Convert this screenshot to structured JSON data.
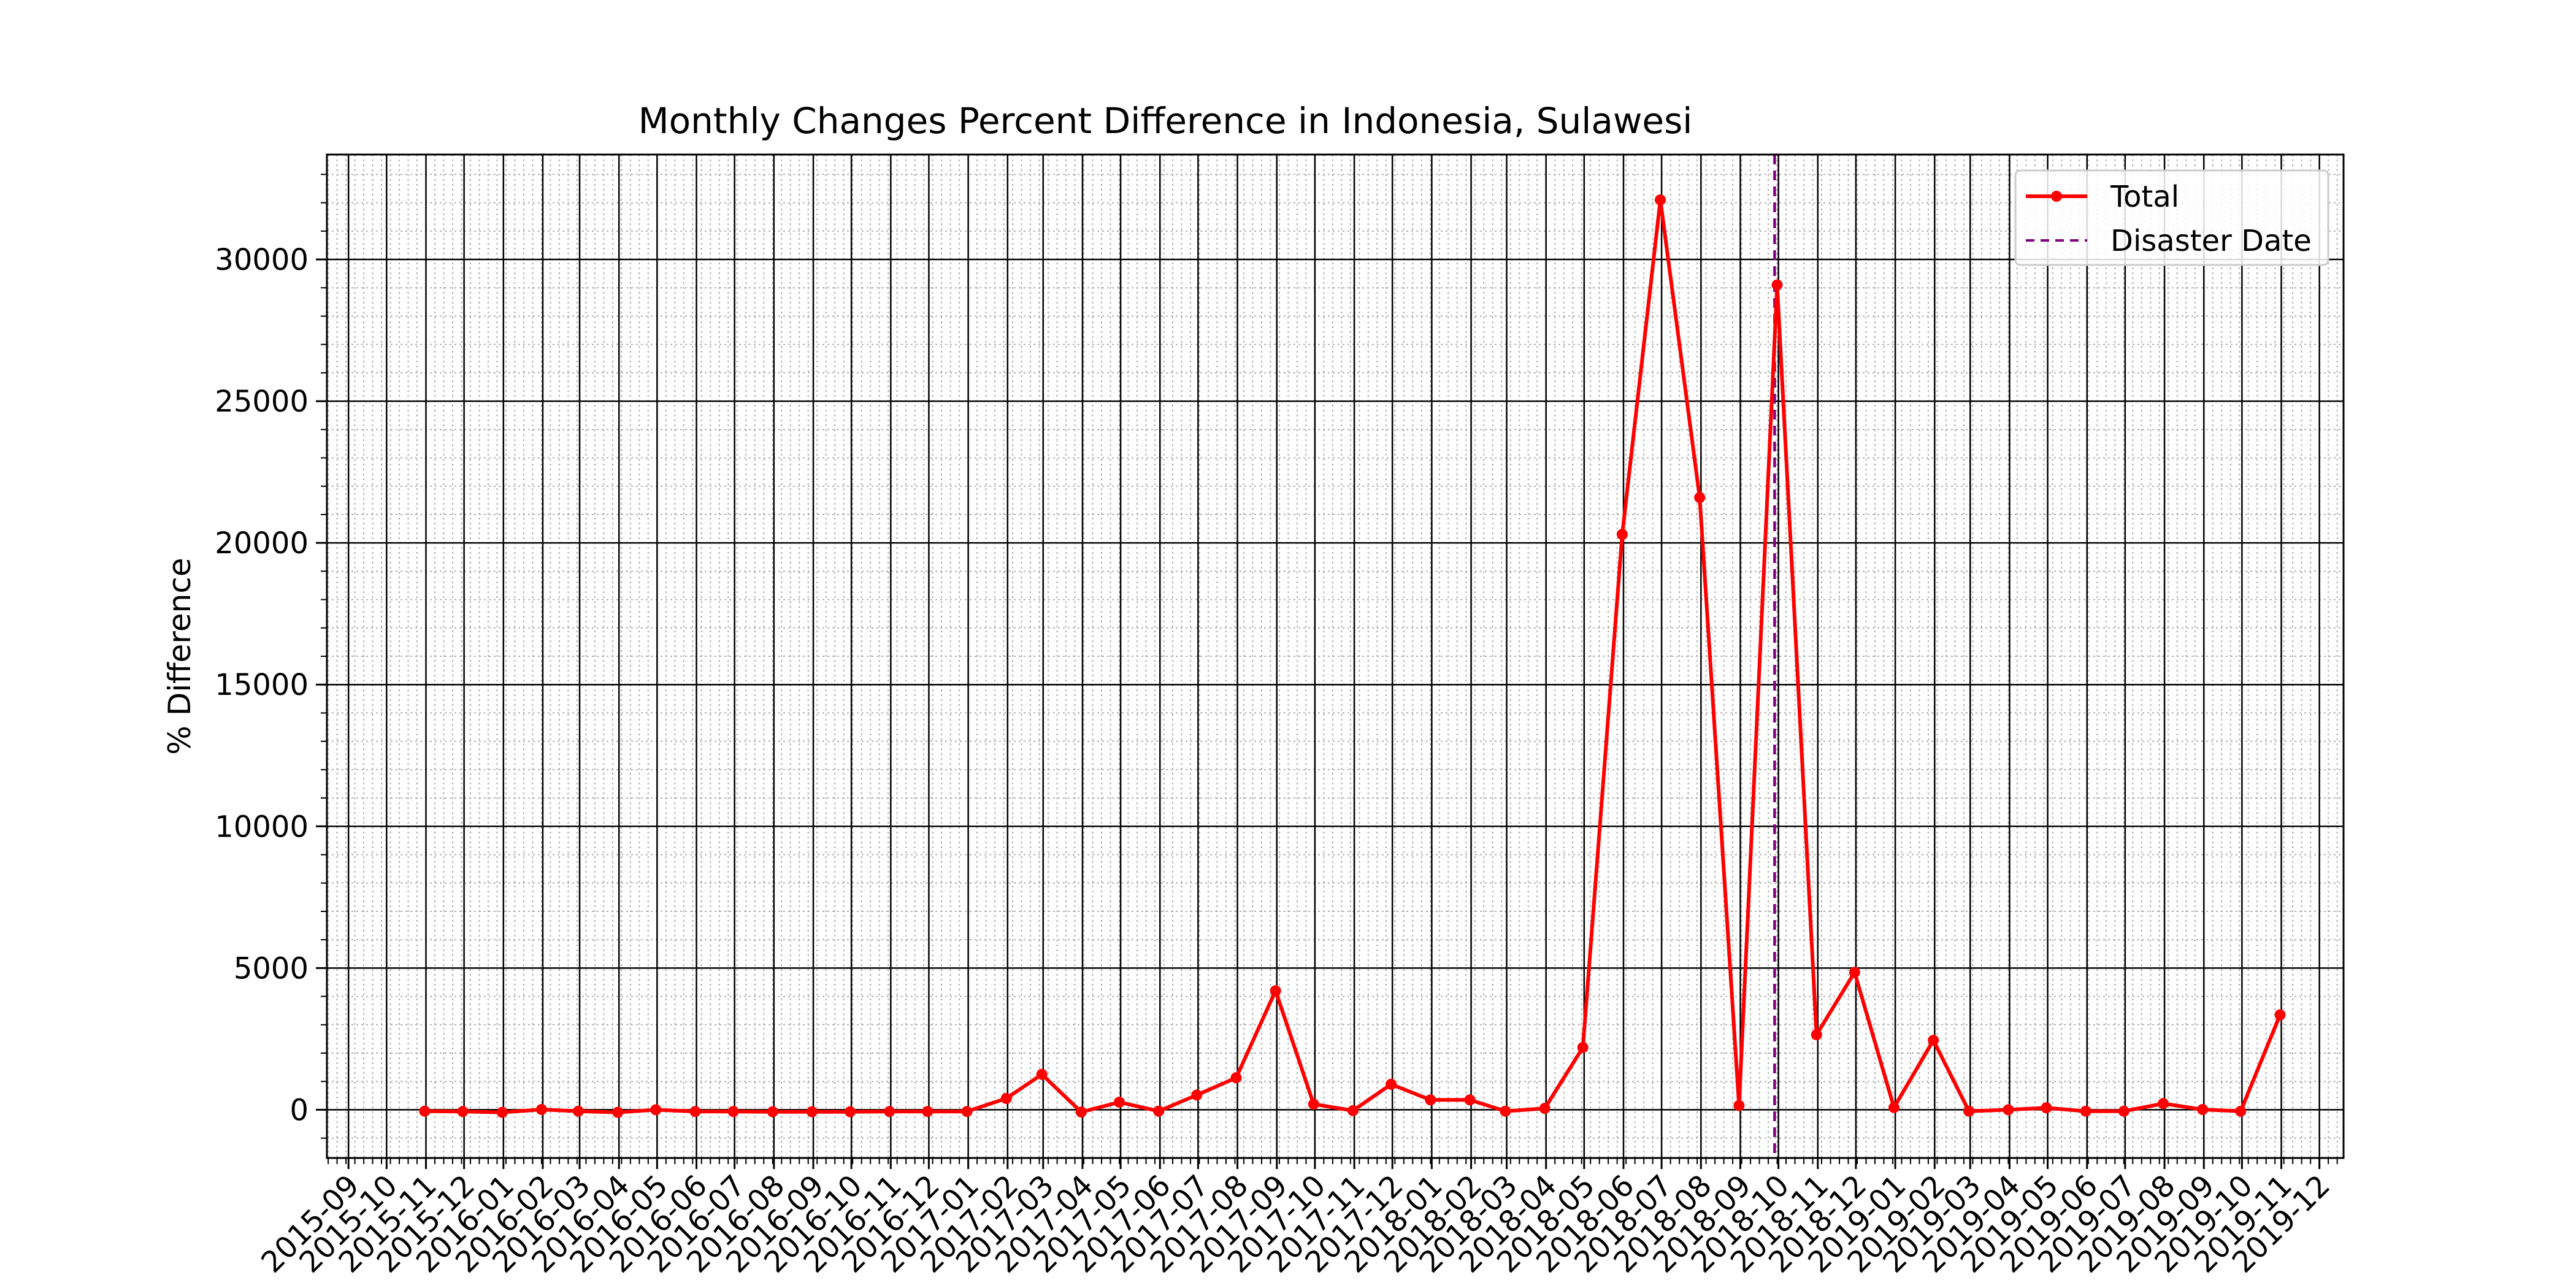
{
  "chart_data": {
    "type": "line",
    "title": "Monthly Changes Percent Difference in Indonesia, Sulawesi",
    "xlabel": "",
    "ylabel": "% Difference",
    "xlim": [
      "2015-08-15",
      "2019-12-20"
    ],
    "ylim": [
      -1700,
      33700
    ],
    "y_ticks": [
      0,
      5000,
      10000,
      15000,
      20000,
      25000,
      30000
    ],
    "x_tick_labels": [
      "2015-09",
      "2015-10",
      "2015-11",
      "2015-12",
      "2016-01",
      "2016-02",
      "2016-03",
      "2016-04",
      "2016-05",
      "2016-06",
      "2016-07",
      "2016-08",
      "2016-09",
      "2016-10",
      "2016-11",
      "2016-12",
      "2017-01",
      "2017-02",
      "2017-03",
      "2017-04",
      "2017-05",
      "2017-06",
      "2017-07",
      "2017-08",
      "2017-09",
      "2017-10",
      "2017-11",
      "2017-12",
      "2018-01",
      "2018-02",
      "2018-03",
      "2018-04",
      "2018-05",
      "2018-06",
      "2018-07",
      "2018-08",
      "2018-09",
      "2018-10",
      "2018-11",
      "2018-12",
      "2019-01",
      "2019-02",
      "2019-03",
      "2019-04",
      "2019-05",
      "2019-06",
      "2019-07",
      "2019-08",
      "2019-09",
      "2019-10",
      "2019-11",
      "2019-12"
    ],
    "grid": true,
    "legend_position": "top-right",
    "series": [
      {
        "name": "Total",
        "color": "#ff0000",
        "marker": "circle",
        "x": [
          "2015-10-31",
          "2015-11-30",
          "2015-12-31",
          "2016-01-31",
          "2016-02-29",
          "2016-03-31",
          "2016-04-30",
          "2016-05-31",
          "2016-06-30",
          "2016-07-31",
          "2016-08-31",
          "2016-09-30",
          "2016-10-31",
          "2016-11-30",
          "2016-12-31",
          "2017-01-31",
          "2017-02-28",
          "2017-03-31",
          "2017-04-30",
          "2017-05-31",
          "2017-06-30",
          "2017-07-31",
          "2017-08-31",
          "2017-09-30",
          "2017-10-31",
          "2017-11-30",
          "2017-12-31",
          "2018-01-31",
          "2018-02-28",
          "2018-03-31",
          "2018-04-30",
          "2018-05-31",
          "2018-06-30",
          "2018-07-31",
          "2018-08-31",
          "2018-09-30",
          "2018-10-31",
          "2018-11-30",
          "2018-12-31",
          "2019-01-31",
          "2019-02-28",
          "2019-03-31",
          "2019-04-30",
          "2019-05-31",
          "2019-06-30",
          "2019-07-31",
          "2019-08-31",
          "2019-09-30",
          "2019-10-31"
        ],
        "y": [
          -50,
          -60,
          -90,
          10,
          -50,
          -90,
          0,
          -60,
          -60,
          -70,
          -70,
          -70,
          -60,
          -60,
          -60,
          400,
          1250,
          -80,
          270,
          -50,
          520,
          1130,
          4200,
          200,
          -30,
          900,
          350,
          350,
          -50,
          50,
          2200,
          20300,
          32100,
          21600,
          150,
          29100,
          2650,
          4850,
          80,
          2450,
          -50,
          0,
          70,
          -50,
          -50,
          220,
          10,
          -50,
          3350
        ]
      },
      {
        "name": "Disaster Date",
        "color": "#800080",
        "style": "dashed",
        "x": "2018-09-28"
      }
    ]
  }
}
